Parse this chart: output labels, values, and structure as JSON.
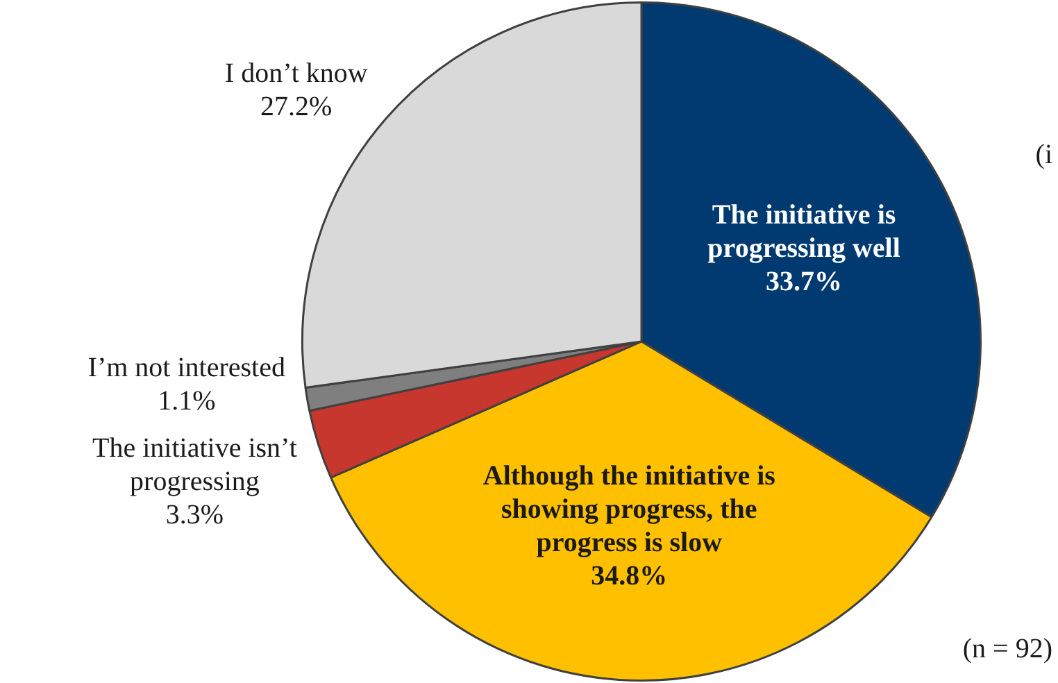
{
  "chart_data": {
    "type": "pie",
    "categories": [
      "The initiative is progressing well",
      "Although the initiative is showing progress, the progress is slow",
      "The initiative isn’t progressing",
      "I’m not interested",
      "I don’t know"
    ],
    "values": [
      33.7,
      34.8,
      3.3,
      1.1,
      27.2
    ],
    "colors": [
      "#003a70",
      "#ffc000",
      "#c8372d",
      "#7f7f7f",
      "#d9d9d9"
    ],
    "value_labels": [
      "33.7%",
      "34.8%",
      "3.3%",
      "1.1%",
      "27.2%"
    ],
    "legend": false,
    "annotations": [
      "(n = 92)",
      "(i"
    ]
  }
}
